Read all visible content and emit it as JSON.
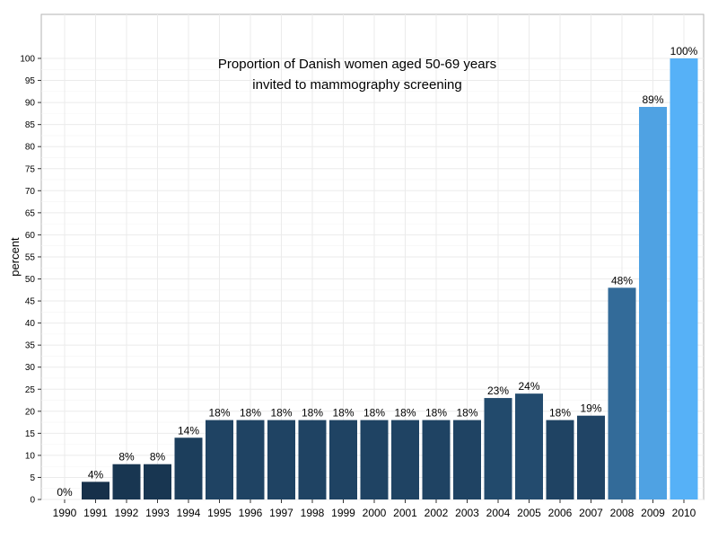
{
  "chart_data": {
    "type": "bar",
    "title_lines": [
      "Proportion of Danish women aged 50-69 years",
      "invited to mammography screening"
    ],
    "xlabel": "",
    "ylabel": "percent",
    "ylim": [
      0,
      100
    ],
    "yticks": [
      0,
      5,
      10,
      15,
      20,
      25,
      30,
      35,
      40,
      45,
      50,
      55,
      60,
      65,
      70,
      75,
      80,
      85,
      90,
      95,
      100
    ],
    "categories": [
      "1990",
      "1991",
      "1992",
      "1993",
      "1994",
      "1995",
      "1996",
      "1997",
      "1998",
      "1999",
      "2000",
      "2001",
      "2002",
      "2003",
      "2004",
      "2005",
      "2006",
      "2007",
      "2008",
      "2009",
      "2010"
    ],
    "values": [
      0,
      4,
      8,
      8,
      14,
      18,
      18,
      18,
      18,
      18,
      18,
      18,
      18,
      18,
      23,
      24,
      18,
      19,
      48,
      89,
      100
    ],
    "data_labels": [
      "0%",
      "4%",
      "8%",
      "8%",
      "14%",
      "18%",
      "18%",
      "18%",
      "18%",
      "18%",
      "18%",
      "18%",
      "18%",
      "18%",
      "23%",
      "24%",
      "18%",
      "19%",
      "48%",
      "89%",
      "100%"
    ],
    "color_scale": {
      "low": "#132B43",
      "high": "#56B1F7"
    },
    "grid": true,
    "legend": "none"
  }
}
